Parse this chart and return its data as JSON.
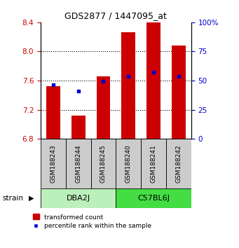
{
  "title": "GDS2877 / 1447095_at",
  "samples": [
    "GSM188243",
    "GSM188244",
    "GSM188245",
    "GSM188240",
    "GSM188241",
    "GSM188242"
  ],
  "red_values": [
    7.52,
    7.12,
    7.66,
    8.26,
    8.4,
    8.08
  ],
  "blue_values": [
    7.545,
    7.46,
    7.59,
    7.655,
    7.72,
    7.655
  ],
  "ylim": [
    6.8,
    8.4
  ],
  "yticks": [
    6.8,
    7.2,
    7.6,
    8.0,
    8.4
  ],
  "y2ticks": [
    0,
    25,
    50,
    75,
    100
  ],
  "y2labels": [
    "0",
    "25",
    "50",
    "75",
    "100%"
  ],
  "groups": [
    {
      "label": "DBA2J",
      "samples": [
        0,
        1,
        2
      ],
      "color": "#bbf0bb"
    },
    {
      "label": "C57BL6J",
      "samples": [
        3,
        4,
        5
      ],
      "color": "#44dd44"
    }
  ],
  "group_label": "strain",
  "bar_color": "#cc0000",
  "dot_color": "#0000cc",
  "bar_width": 0.55,
  "background_color": "#ffffff",
  "tick_color_left": "#cc0000",
  "tick_color_right": "#0000cc",
  "sample_bg_color": "#cccccc",
  "legend_red_label": "transformed count",
  "legend_blue_label": "percentile rank within the sample"
}
